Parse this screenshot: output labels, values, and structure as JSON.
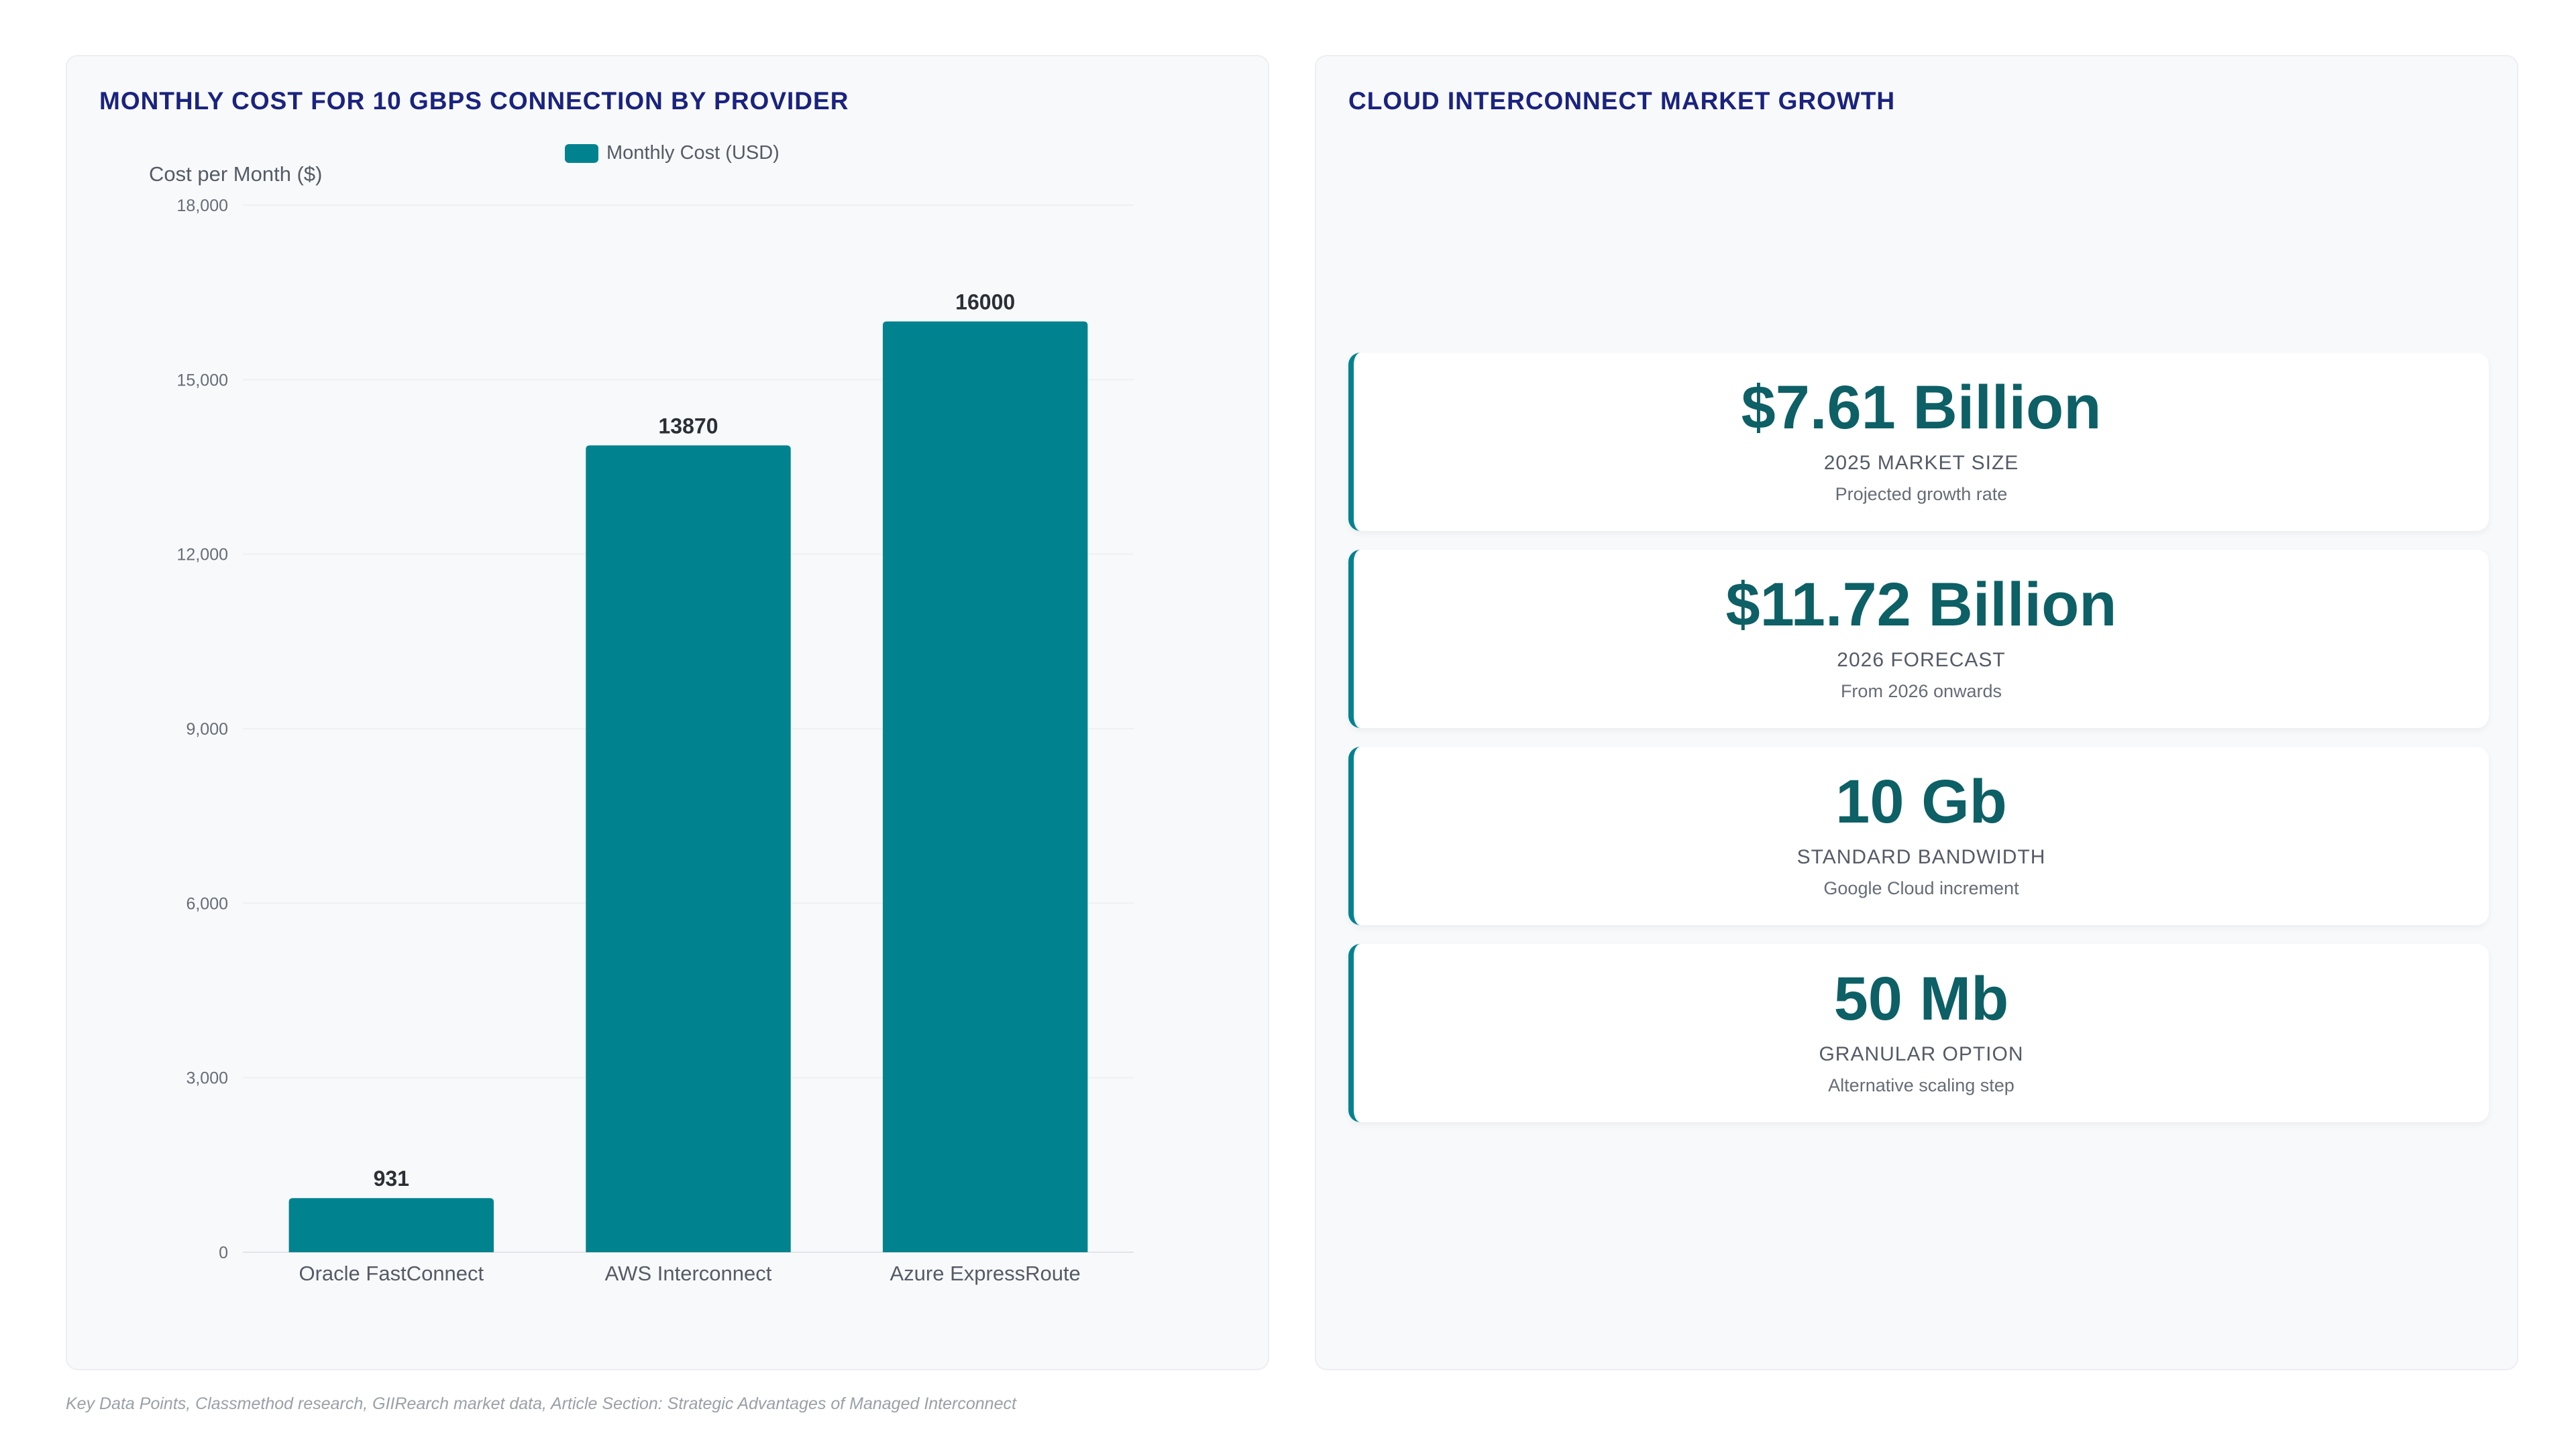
{
  "left_panel": {
    "title": "MONTHLY COST FOR 10 GBPS CONNECTION BY PROVIDER"
  },
  "chart_data": {
    "type": "bar",
    "categories": [
      "Oracle FastConnect",
      "AWS Interconnect",
      "Azure ExpressRoute"
    ],
    "series": [
      {
        "name": "Monthly Cost (USD)",
        "values": [
          931,
          13870,
          16000
        ]
      }
    ],
    "data_labels": [
      "931",
      "13870",
      "16000"
    ],
    "ylabel": "Cost per Month ($)",
    "ylim": [
      0,
      18000
    ],
    "yticks": [
      0,
      3000,
      6000,
      9000,
      12000,
      15000,
      18000
    ],
    "ytick_labels": [
      "0",
      "3,000",
      "6,000",
      "9,000",
      "12,000",
      "15,000",
      "18,000"
    ],
    "legend_position": "top",
    "grid": true,
    "color": "#00838f"
  },
  "right_panel": {
    "title": "CLOUD INTERCONNECT MARKET GROWTH",
    "cards": [
      {
        "value": "$7.61 Billion",
        "label": "2025 MARKET SIZE",
        "sub": "Projected growth rate"
      },
      {
        "value": "$11.72 Billion",
        "label": "2026 FORECAST",
        "sub": "From 2026 onwards"
      },
      {
        "value": "10 Gb",
        "label": "STANDARD BANDWIDTH",
        "sub": "Google Cloud increment"
      },
      {
        "value": "50 Mb",
        "label": "GRANULAR OPTION",
        "sub": "Alternative scaling step"
      }
    ]
  },
  "footnote": "Key Data Points, Classmethod research, GIIRearch market data, Article Section: Strategic Advantages of Managed Interconnect",
  "colors": {
    "title": "#1a237e",
    "bar": "#00838f",
    "card_value": "#0d6065",
    "panel_bg": "#f8f9fb"
  }
}
